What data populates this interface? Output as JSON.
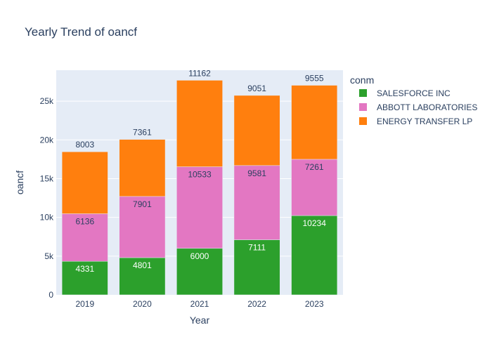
{
  "chart_data": {
    "type": "bar",
    "stacked": true,
    "title": "Yearly Trend of oancf",
    "xlabel": "Year",
    "ylabel": "oancf",
    "categories": [
      "2019",
      "2020",
      "2021",
      "2022",
      "2023"
    ],
    "ylim": [
      0,
      29000
    ],
    "yticks": [
      0,
      5000,
      10000,
      15000,
      20000,
      25000
    ],
    "ytick_labels": [
      "0",
      "5k",
      "10k",
      "15k",
      "20k",
      "25k"
    ],
    "legend_title": "conm",
    "legend_position": "top-right",
    "grid": true,
    "plot_background": "#E5ECF6",
    "series": [
      {
        "name": "SALESFORCE INC",
        "color": "#2CA02C",
        "values": [
          4331,
          4801,
          6000,
          7111,
          10234
        ],
        "label_color": "#ffffff"
      },
      {
        "name": "ABBOTT LABORATORIES",
        "color": "#E377C2",
        "values": [
          6136,
          7901,
          10533,
          9581,
          7261
        ],
        "label_color": "#2a3f5f"
      },
      {
        "name": "ENERGY TRANSFER LP",
        "color": "#FF7F0E",
        "values": [
          8003,
          7361,
          11162,
          9051,
          9555
        ],
        "label_color": "#2a3f5f"
      }
    ]
  }
}
